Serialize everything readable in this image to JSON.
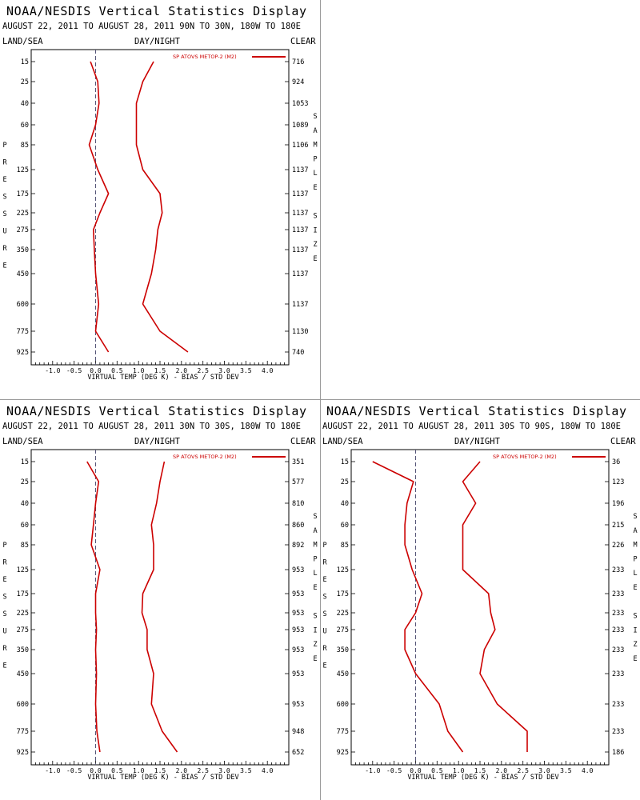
{
  "page": {
    "title": "NOAA/NESDIS Vertical Statistics Display"
  },
  "chart_data": [
    {
      "type": "line",
      "title": "NOAA/NESDIS Vertical Statistics Display",
      "subtitle": "AUGUST 22, 2011 TO AUGUST 28, 2011  90N TO 30N, 180W TO 180E",
      "land_sea": "LAND/SEA",
      "day_night": "DAY/NIGHT",
      "clear": "CLEAR",
      "ylabel_letters": [
        "P",
        "R",
        "E",
        "S",
        "S",
        "U",
        "R",
        "E"
      ],
      "ylabel2_letters": [
        "S",
        "A",
        "M",
        "P",
        "L",
        "E",
        " ",
        "S",
        "I",
        "Z",
        "E"
      ],
      "xlabel": "VIRTUAL TEMP (DEG K) - BIAS / STD DEV",
      "legend": "SP ATOVS METOP-2 (M2)",
      "xlim": [
        -1.5,
        4.5
      ],
      "x_ticks": [
        "-1.0",
        "-0.5",
        "0.0",
        "0.5",
        "1.0",
        "1.5",
        "2.0",
        "2.5",
        "3.0",
        "3.5",
        "4.0"
      ],
      "pressure_levels": [
        "15",
        "25",
        "40",
        "60",
        "85",
        "125",
        "175",
        "225",
        "275",
        "350",
        "450",
        "600",
        "775",
        "925"
      ],
      "sample_size": [
        "716",
        "924",
        "1053",
        "1089",
        "1106",
        "1137",
        "1137",
        "1137",
        "1137",
        "1137",
        "1137",
        "1137",
        "1130",
        "740"
      ],
      "series": [
        {
          "values": [
            -0.12,
            0.05,
            0.08,
            0.0,
            -0.15,
            0.05,
            0.3,
            0.1,
            -0.05,
            -0.03,
            0.0,
            0.07,
            0.0,
            0.3
          ],
          "color": "#cc0000"
        },
        {
          "values": [
            1.35,
            1.1,
            0.95,
            0.95,
            0.95,
            1.1,
            1.5,
            1.55,
            1.45,
            1.4,
            1.3,
            1.1,
            1.5,
            2.15
          ],
          "color": "#cc0000"
        }
      ]
    },
    {
      "type": "line",
      "title": "NOAA/NESDIS Vertical Statistics Display",
      "subtitle": "AUGUST 22, 2011 TO AUGUST 28, 2011  30N TO 30S, 180W TO 180E",
      "land_sea": "LAND/SEA",
      "day_night": "DAY/NIGHT",
      "clear": "CLEAR",
      "ylabel_letters": [
        "P",
        "R",
        "E",
        "S",
        "S",
        "U",
        "R",
        "E"
      ],
      "ylabel2_letters": [
        "S",
        "A",
        "M",
        "P",
        "L",
        "E",
        " ",
        "S",
        "I",
        "Z",
        "E"
      ],
      "xlabel": "VIRTUAL TEMP (DEG K) - BIAS / STD DEV",
      "legend": "SP ATOVS METOP-2 (M2)",
      "xlim": [
        -1.5,
        4.5
      ],
      "x_ticks": [
        "-1.0",
        "-0.5",
        "0.0",
        "0.5",
        "1.0",
        "1.5",
        "2.0",
        "2.5",
        "3.0",
        "3.5",
        "4.0"
      ],
      "pressure_levels": [
        "15",
        "25",
        "40",
        "60",
        "85",
        "125",
        "175",
        "225",
        "275",
        "350",
        "450",
        "600",
        "775",
        "925"
      ],
      "sample_size": [
        "351",
        "577",
        "810",
        "860",
        "892",
        "953",
        "953",
        "953",
        "953",
        "953",
        "953",
        "953",
        "948",
        "652"
      ],
      "series": [
        {
          "values": [
            -0.2,
            0.07,
            0.0,
            -0.05,
            -0.1,
            0.1,
            0.0,
            0.0,
            0.02,
            0.0,
            0.02,
            0.0,
            0.03,
            0.1
          ],
          "color": "#cc0000"
        },
        {
          "values": [
            1.6,
            1.5,
            1.42,
            1.3,
            1.35,
            1.35,
            1.1,
            1.08,
            1.2,
            1.2,
            1.35,
            1.3,
            1.55,
            1.9
          ],
          "color": "#cc0000"
        }
      ]
    },
    {
      "type": "line",
      "title": "NOAA/NESDIS Vertical Statistics Display",
      "subtitle": "AUGUST 22, 2011 TO AUGUST 28, 2011  30S TO 90S, 180W TO 180E",
      "land_sea": "LAND/SEA",
      "day_night": "DAY/NIGHT",
      "clear": "CLEAR",
      "ylabel_letters": [
        "P",
        "R",
        "E",
        "S",
        "S",
        "U",
        "R",
        "E"
      ],
      "ylabel2_letters": [
        "S",
        "A",
        "M",
        "P",
        "L",
        "E",
        " ",
        "S",
        "I",
        "Z",
        "E"
      ],
      "xlabel": "VIRTUAL TEMP (DEG K) - BIAS / STD DEV",
      "legend": "SP ATOVS METOP-2 (M2)",
      "xlim": [
        -1.5,
        4.5
      ],
      "x_ticks": [
        "-1.0",
        "-0.5",
        "0.0",
        "0.5",
        "1.0",
        "1.5",
        "2.0",
        "2.5",
        "3.0",
        "3.5",
        "4.0"
      ],
      "pressure_levels": [
        "15",
        "25",
        "40",
        "60",
        "85",
        "125",
        "175",
        "225",
        "275",
        "350",
        "450",
        "600",
        "775",
        "925"
      ],
      "sample_size": [
        "36",
        "123",
        "196",
        "215",
        "226",
        "233",
        "233",
        "233",
        "233",
        "233",
        "233",
        "233",
        "233",
        "186"
      ],
      "series": [
        {
          "values": [
            -1.0,
            -0.05,
            -0.2,
            -0.25,
            -0.25,
            -0.08,
            0.15,
            0.0,
            -0.25,
            -0.25,
            0.0,
            0.55,
            0.75,
            1.1
          ],
          "color": "#cc0000"
        },
        {
          "values": [
            1.5,
            1.1,
            1.4,
            1.1,
            1.1,
            1.1,
            1.7,
            1.75,
            1.85,
            1.6,
            1.5,
            1.9,
            2.6,
            2.6
          ],
          "color": "#cc0000"
        }
      ]
    }
  ]
}
